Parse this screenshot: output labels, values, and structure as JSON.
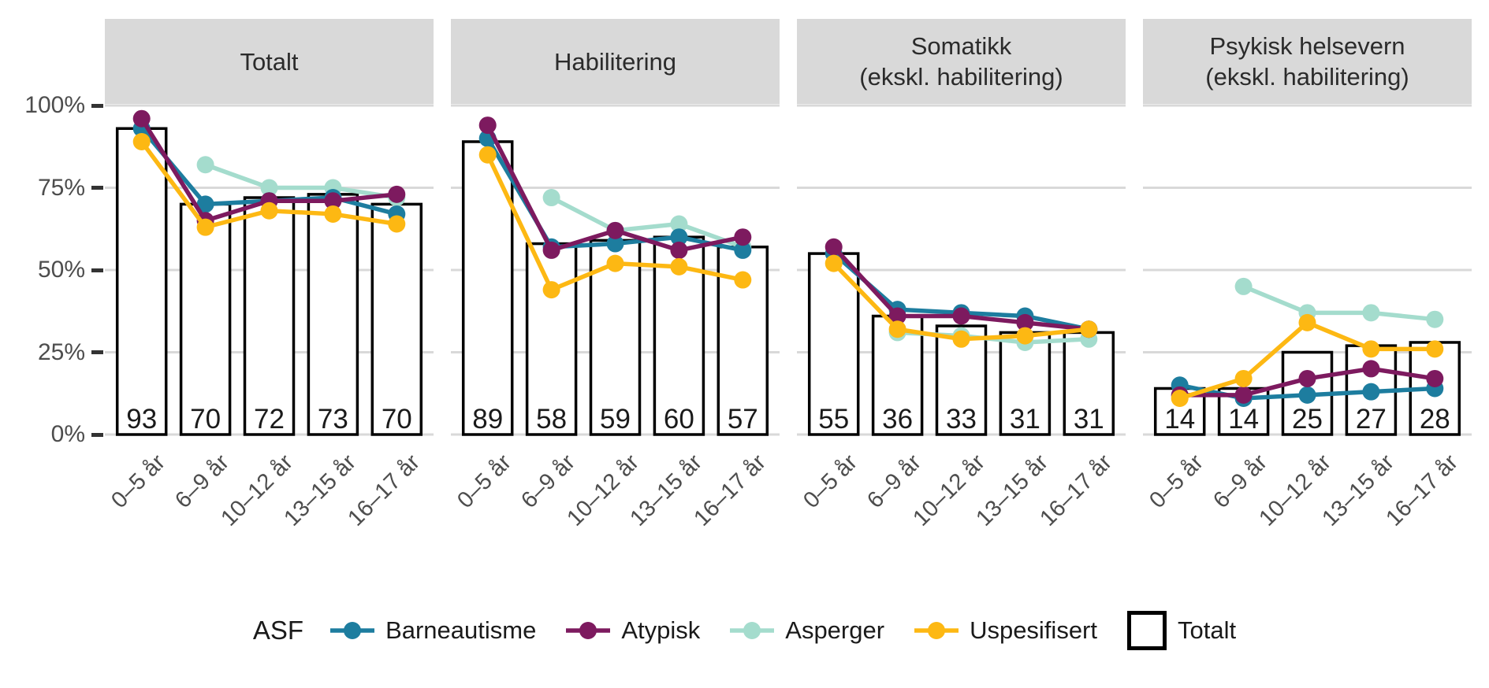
{
  "chart_data": {
    "type": "bar+line",
    "facets": [
      {
        "title_lines": [
          "Totalt"
        ],
        "bar_values": [
          93,
          70,
          72,
          73,
          70
        ],
        "series_values": {
          "Barneautisme": [
            93,
            70,
            71,
            72,
            67
          ],
          "Atypisk": [
            96,
            65,
            71,
            71,
            73
          ],
          "Asperger": [
            null,
            82,
            75,
            75,
            72
          ],
          "Uspesifisert": [
            89,
            63,
            68,
            67,
            64
          ]
        }
      },
      {
        "title_lines": [
          "Habilitering"
        ],
        "bar_values": [
          89,
          58,
          59,
          60,
          57
        ],
        "series_values": {
          "Barneautisme": [
            90,
            57,
            58,
            60,
            56
          ],
          "Atypisk": [
            94,
            56,
            62,
            56,
            60
          ],
          "Asperger": [
            null,
            72,
            62,
            64,
            57
          ],
          "Uspesifisert": [
            85,
            44,
            52,
            51,
            47
          ]
        }
      },
      {
        "title_lines": [
          "Somatikk",
          "(ekskl. habilitering)"
        ],
        "bar_values": [
          55,
          36,
          33,
          31,
          31
        ],
        "series_values": {
          "Barneautisme": [
            55,
            38,
            37,
            36,
            32
          ],
          "Atypisk": [
            57,
            36,
            36,
            34,
            32
          ],
          "Asperger": [
            null,
            31,
            30,
            28,
            29
          ],
          "Uspesifisert": [
            52,
            32,
            29,
            30,
            32
          ]
        }
      },
      {
        "title_lines": [
          "Psykisk helsevern",
          "(ekskl. habilitering)"
        ],
        "bar_values": [
          14,
          14,
          25,
          27,
          28
        ],
        "series_values": {
          "Barneautisme": [
            15,
            11,
            12,
            13,
            14
          ],
          "Atypisk": [
            12,
            12,
            17,
            20,
            17
          ],
          "Asperger": [
            null,
            45,
            37,
            37,
            35
          ],
          "Uspesifisert": [
            11,
            17,
            34,
            26,
            26
          ]
        }
      }
    ],
    "categories": [
      "0–5 år",
      "6–9 år",
      "10–12 år",
      "13–15 år",
      "16–17 år"
    ],
    "line_series": [
      {
        "name": "Barneautisme",
        "color": "#1d7d9f"
      },
      {
        "name": "Atypisk",
        "color": "#7d1a5f"
      },
      {
        "name": "Asperger",
        "color": "#a4dccd"
      },
      {
        "name": "Uspesifisert",
        "color": "#fdb813"
      }
    ],
    "draw_order": [
      "Asperger",
      "Barneautisme",
      "Atypisk",
      "Uspesifisert"
    ],
    "bar_series_name": "Totalt",
    "bar_style": {
      "fill": "#ffffff",
      "stroke": "#000000"
    },
    "legend_title": "ASF",
    "legend_position": "bottom",
    "y_ticks": [
      {
        "label": "100%",
        "value": 100
      },
      {
        "label": "75%",
        "value": 75
      },
      {
        "label": "50%",
        "value": 50
      },
      {
        "label": "25%",
        "value": 25
      },
      {
        "label": "0%",
        "value": 0
      }
    ],
    "ylim": [
      0,
      100
    ],
    "grid": "horizontal-only",
    "grid_color": "#d9d9d9",
    "header_bg": "#d9d9d9",
    "axis_text_color": "#4d4d4d"
  }
}
